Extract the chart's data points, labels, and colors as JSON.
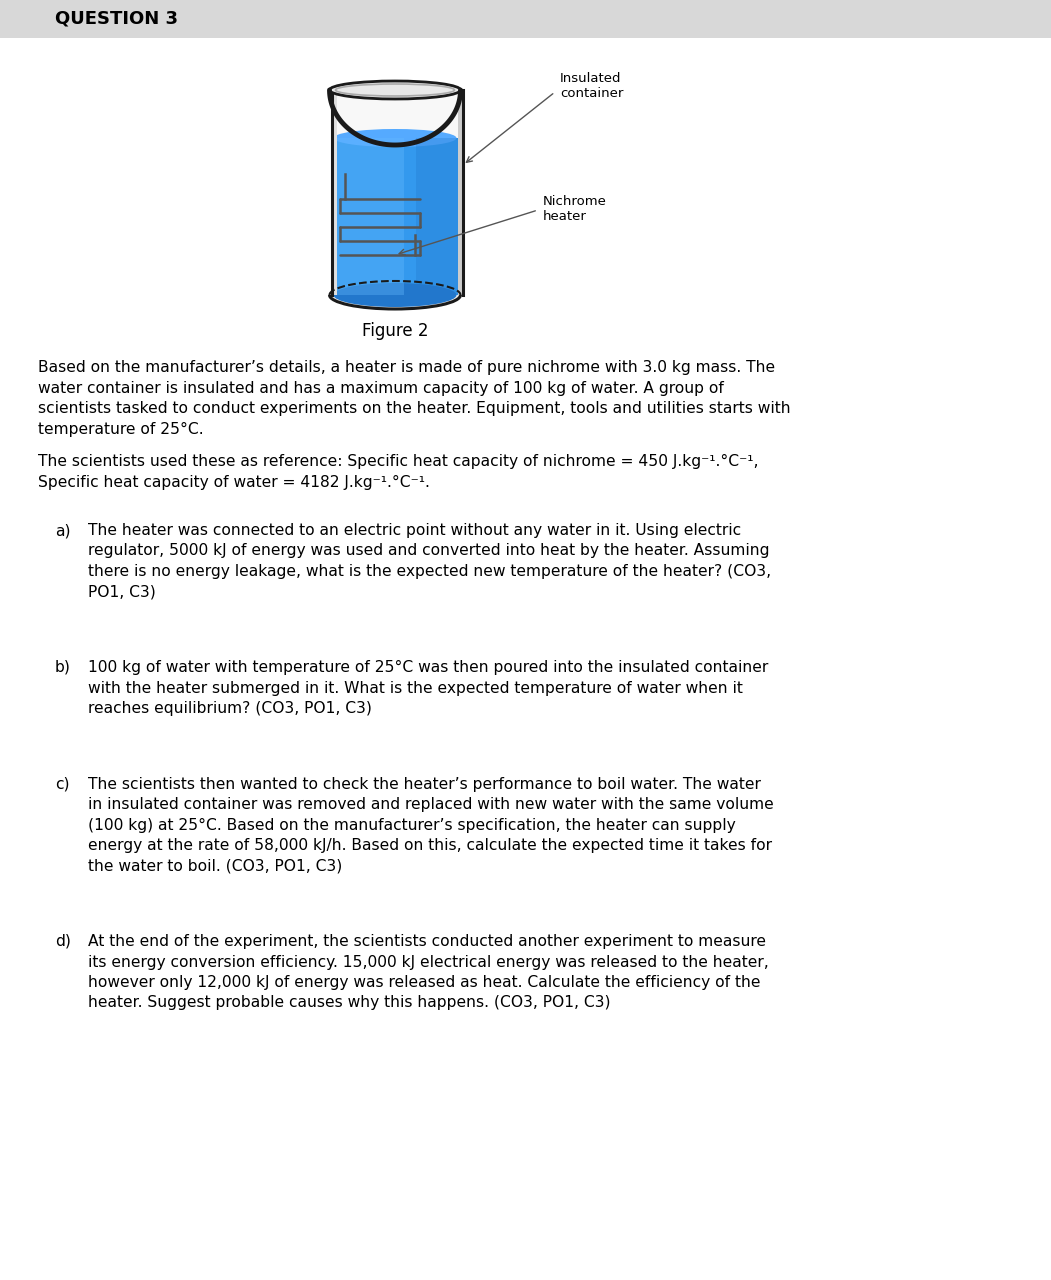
{
  "title": "QUESTION 3",
  "figure_label": "Figure 2",
  "label_insulated": "Insulated\ncontainer",
  "label_nichrome": "Nichrome\nheater",
  "para1": "Based on the manufacturer’s details, a heater is made of pure nichrome with 3.0 kg mass. The\nwater container is insulated and has a maximum capacity of 100 kg of water. A group of\nscientists tasked to conduct experiments on the heater. Equipment, tools and utilities starts with\ntemperature of 25°C.",
  "para2": "The scientists used these as reference: Specific heat capacity of nichrome = 450 J.kg⁻¹.°C⁻¹,\nSpecific heat capacity of water = 4182 J.kg⁻¹.°C⁻¹.",
  "qa_label": "a)",
  "qa_text": "The heater was connected to an electric point without any water in it. Using electric\nregulator, 5000 kJ of energy was used and converted into heat by the heater. Assuming\nthere is no energy leakage, what is the expected new temperature of the heater? (CO3,\nPO1, C3)",
  "qb_label": "b)",
  "qb_text": "100 kg of water with temperature of 25°C was then poured into the insulated container\nwith the heater submerged in it. What is the expected temperature of water when it\nreaches equilibrium? (CO3, PO1, C3)",
  "qc_label": "c)",
  "qc_text": "The scientists then wanted to check the heater’s performance to boil water. The water\nin insulated container was removed and replaced with new water with the same volume\n(100 kg) at 25°C. Based on the manufacturer’s specification, the heater can supply\nenergy at the rate of 58,000 kJ/h. Based on this, calculate the expected time it takes for\nthe water to boil. (CO3, PO1, C3)",
  "qd_label": "d)",
  "qd_text": "At the end of the experiment, the scientists conducted another experiment to measure\nits energy conversion efficiency. 15,000 kJ electrical energy was released to the heater,\nhowever only 12,000 kJ of energy was released as heat. Calculate the efficiency of the\nheater. Suggest probable causes why this happens. (CO3, PO1, C3)",
  "text_color": "#000000",
  "water_color": "#3399ee",
  "water_highlight": "#66bbff",
  "water_right": "#2277cc",
  "container_fill": "#f5f5f5",
  "container_edge": "#1a1a1a",
  "header_color": "#d8d8d8",
  "bg_color": "#ffffff"
}
